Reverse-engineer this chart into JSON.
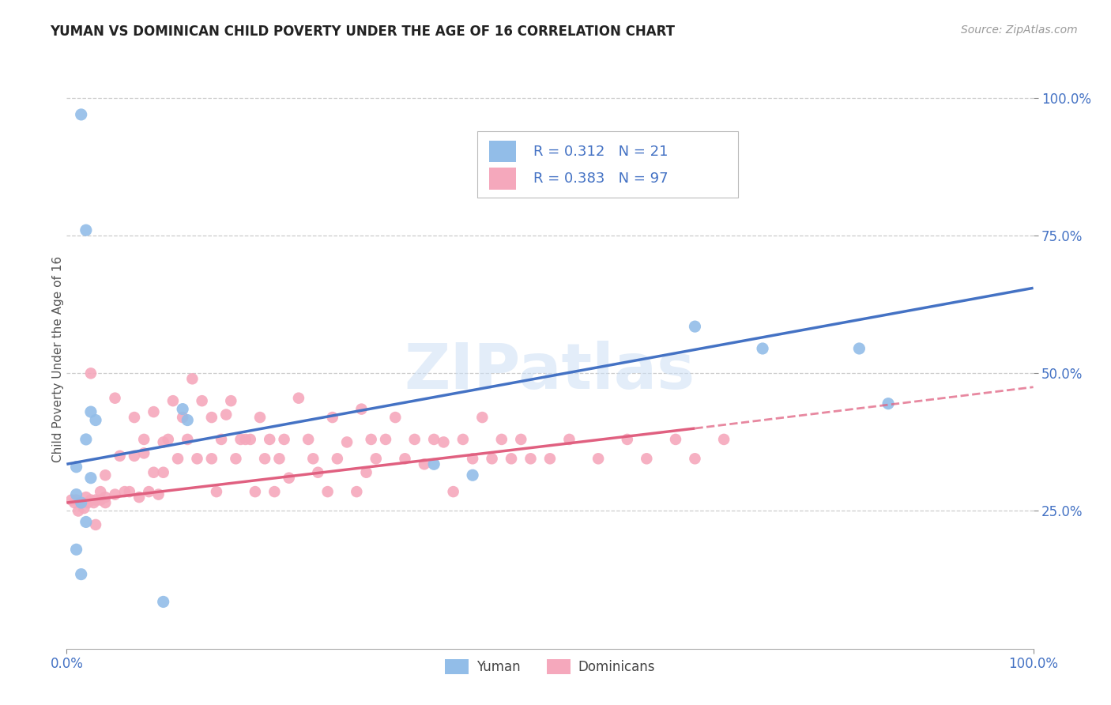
{
  "title": "YUMAN VS DOMINICAN CHILD POVERTY UNDER THE AGE OF 16 CORRELATION CHART",
  "source": "Source: ZipAtlas.com",
  "ylabel": "Child Poverty Under the Age of 16",
  "xlim": [
    0.0,
    1.0
  ],
  "ylim": [
    0.0,
    1.05
  ],
  "xtick_labels": [
    "0.0%",
    "100.0%"
  ],
  "ytick_labels": [
    "25.0%",
    "50.0%",
    "75.0%",
    "100.0%"
  ],
  "ytick_positions": [
    0.25,
    0.5,
    0.75,
    1.0
  ],
  "grid_color": "#cccccc",
  "background_color": "#ffffff",
  "watermark": "ZIPatlas",
  "yuman_color": "#92bde8",
  "dominicans_color": "#f5a8bc",
  "yuman_line_color": "#4472c4",
  "dominicans_line_color": "#e06080",
  "yuman_line_start_y": 0.335,
  "yuman_line_end_y": 0.655,
  "dominicans_line_start_y": 0.265,
  "dominicans_line_end_x": 0.65,
  "dominicans_line_end_y": 0.4,
  "dominicans_line_dash_end_y": 0.475,
  "yuman_scatter_x": [
    0.015,
    0.02,
    0.02,
    0.025,
    0.025,
    0.03,
    0.01,
    0.01,
    0.015,
    0.02,
    0.01,
    0.015,
    0.12,
    0.125,
    0.38,
    0.65,
    0.72,
    0.82,
    0.1,
    0.42,
    0.85
  ],
  "yuman_scatter_y": [
    0.97,
    0.76,
    0.38,
    0.43,
    0.31,
    0.415,
    0.33,
    0.28,
    0.265,
    0.23,
    0.18,
    0.135,
    0.435,
    0.415,
    0.335,
    0.585,
    0.545,
    0.545,
    0.085,
    0.315,
    0.445
  ],
  "dominicans_scatter_x": [
    0.005,
    0.008,
    0.01,
    0.012,
    0.015,
    0.018,
    0.02,
    0.022,
    0.025,
    0.025,
    0.028,
    0.03,
    0.03,
    0.035,
    0.035,
    0.04,
    0.04,
    0.04,
    0.05,
    0.05,
    0.055,
    0.06,
    0.065,
    0.07,
    0.07,
    0.075,
    0.08,
    0.08,
    0.085,
    0.09,
    0.09,
    0.095,
    0.1,
    0.1,
    0.105,
    0.11,
    0.115,
    0.12,
    0.125,
    0.13,
    0.135,
    0.14,
    0.15,
    0.15,
    0.155,
    0.16,
    0.165,
    0.17,
    0.175,
    0.18,
    0.185,
    0.19,
    0.195,
    0.2,
    0.205,
    0.21,
    0.215,
    0.22,
    0.225,
    0.23,
    0.24,
    0.25,
    0.255,
    0.26,
    0.27,
    0.275,
    0.28,
    0.29,
    0.3,
    0.305,
    0.31,
    0.315,
    0.32,
    0.33,
    0.34,
    0.35,
    0.36,
    0.37,
    0.38,
    0.39,
    0.4,
    0.41,
    0.42,
    0.43,
    0.44,
    0.45,
    0.46,
    0.47,
    0.48,
    0.5,
    0.52,
    0.55,
    0.58,
    0.6,
    0.63,
    0.65,
    0.68
  ],
  "dominicans_scatter_y": [
    0.27,
    0.265,
    0.27,
    0.25,
    0.265,
    0.255,
    0.275,
    0.265,
    0.27,
    0.5,
    0.265,
    0.27,
    0.225,
    0.285,
    0.27,
    0.275,
    0.315,
    0.265,
    0.455,
    0.28,
    0.35,
    0.285,
    0.285,
    0.42,
    0.35,
    0.275,
    0.38,
    0.355,
    0.285,
    0.43,
    0.32,
    0.28,
    0.375,
    0.32,
    0.38,
    0.45,
    0.345,
    0.42,
    0.38,
    0.49,
    0.345,
    0.45,
    0.345,
    0.42,
    0.285,
    0.38,
    0.425,
    0.45,
    0.345,
    0.38,
    0.38,
    0.38,
    0.285,
    0.42,
    0.345,
    0.38,
    0.285,
    0.345,
    0.38,
    0.31,
    0.455,
    0.38,
    0.345,
    0.32,
    0.285,
    0.42,
    0.345,
    0.375,
    0.285,
    0.435,
    0.32,
    0.38,
    0.345,
    0.38,
    0.42,
    0.345,
    0.38,
    0.335,
    0.38,
    0.375,
    0.285,
    0.38,
    0.345,
    0.42,
    0.345,
    0.38,
    0.345,
    0.38,
    0.345,
    0.345,
    0.38,
    0.345,
    0.38,
    0.345,
    0.38,
    0.345,
    0.38
  ]
}
